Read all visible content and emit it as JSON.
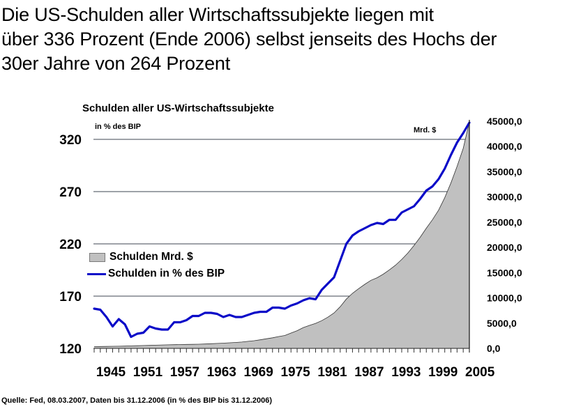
{
  "headline": {
    "lines": [
      "Die US-Schulden aller Wirtschaftssubjekte liegen mit",
      "über 336 Prozent (Ende 2006) selbst jenseits des Hochs der",
      "30er Jahre von 264 Prozent"
    ]
  },
  "source": "Quelle: Fed, 08.03.2007, Daten bis 31.12.2006 (in % des BIP bis 31.12.2006)",
  "colors": {
    "area_fill": "#c0c0c0",
    "area_edge": "#333333",
    "line": "#0a0ac8",
    "grid": "#3c4650"
  },
  "chart_data": {
    "type": "area+line",
    "title": "Schulden aller US-Wirtschaftssubjekte",
    "ylabel_left": "in % des BIP",
    "ylabel_right": "Mrd. $",
    "xlabel": "",
    "x": [
      1945,
      1946,
      1947,
      1948,
      1949,
      1950,
      1951,
      1952,
      1953,
      1954,
      1955,
      1956,
      1957,
      1958,
      1959,
      1960,
      1961,
      1962,
      1963,
      1964,
      1965,
      1966,
      1967,
      1968,
      1969,
      1970,
      1971,
      1972,
      1973,
      1974,
      1975,
      1976,
      1977,
      1978,
      1979,
      1980,
      1981,
      1982,
      1983,
      1984,
      1985,
      1986,
      1987,
      1988,
      1989,
      1990,
      1991,
      1992,
      1993,
      1994,
      1995,
      1996,
      1997,
      1998,
      1999,
      2000,
      2001,
      2002,
      2003,
      2004,
      2005,
      2006
    ],
    "xticks": [
      "1945",
      "1951",
      "1957",
      "1963",
      "1969",
      "1975",
      "1981",
      "1987",
      "1993",
      "1999",
      "2005"
    ],
    "xlim": [
      1945,
      2006
    ],
    "left_axis": {
      "ylim": [
        120,
        345
      ],
      "ticks": [
        "120",
        "170",
        "220",
        "270",
        "320"
      ],
      "tick_values": [
        120,
        170,
        220,
        270,
        320
      ]
    },
    "right_axis": {
      "ylim": [
        0,
        45000
      ],
      "ticks": [
        "0,0",
        "5000,0",
        "10000,0",
        "15000,0",
        "20000,0",
        "25000,0",
        "30000,0",
        "35000,0",
        "40000,0",
        "45000,0"
      ],
      "tick_values": [
        0,
        5000,
        10000,
        15000,
        20000,
        25000,
        30000,
        35000,
        40000,
        45000
      ]
    },
    "grid": true,
    "legend_position": "center-left",
    "series": [
      {
        "name": "Schulden Mrd. $",
        "type": "area",
        "axis": "right",
        "values": [
          350,
          370,
          390,
          410,
          430,
          460,
          500,
          530,
          560,
          600,
          640,
          670,
          700,
          730,
          760,
          780,
          800,
          830,
          870,
          920,
          980,
          1040,
          1100,
          1180,
          1260,
          1400,
          1520,
          1700,
          1900,
          2100,
          2340,
          2550,
          3030,
          3500,
          4130,
          4550,
          4950,
          5500,
          6190,
          7020,
          8260,
          9770,
          10900,
          11830,
          12700,
          13490,
          14000,
          14700,
          15550,
          16500,
          17610,
          18900,
          20370,
          22000,
          23810,
          25500,
          27380,
          29860,
          32750,
          36050,
          39630,
          44860
        ]
      },
      {
        "name": "Schulden in % des BIP",
        "type": "line",
        "axis": "left",
        "values": [
          158,
          157,
          150,
          141,
          148,
          143,
          131,
          134,
          135,
          141,
          139,
          138,
          138,
          145,
          145,
          147,
          151,
          151,
          154,
          154,
          153,
          150,
          152,
          150,
          150,
          152,
          154,
          155,
          155,
          159,
          159,
          158,
          161,
          163,
          166,
          168,
          167,
          176,
          182,
          188,
          204,
          220,
          228,
          232,
          235,
          238,
          240,
          239,
          243,
          243,
          250,
          253,
          256,
          263,
          271,
          275,
          282,
          292,
          305,
          317,
          326,
          336
        ]
      }
    ]
  }
}
